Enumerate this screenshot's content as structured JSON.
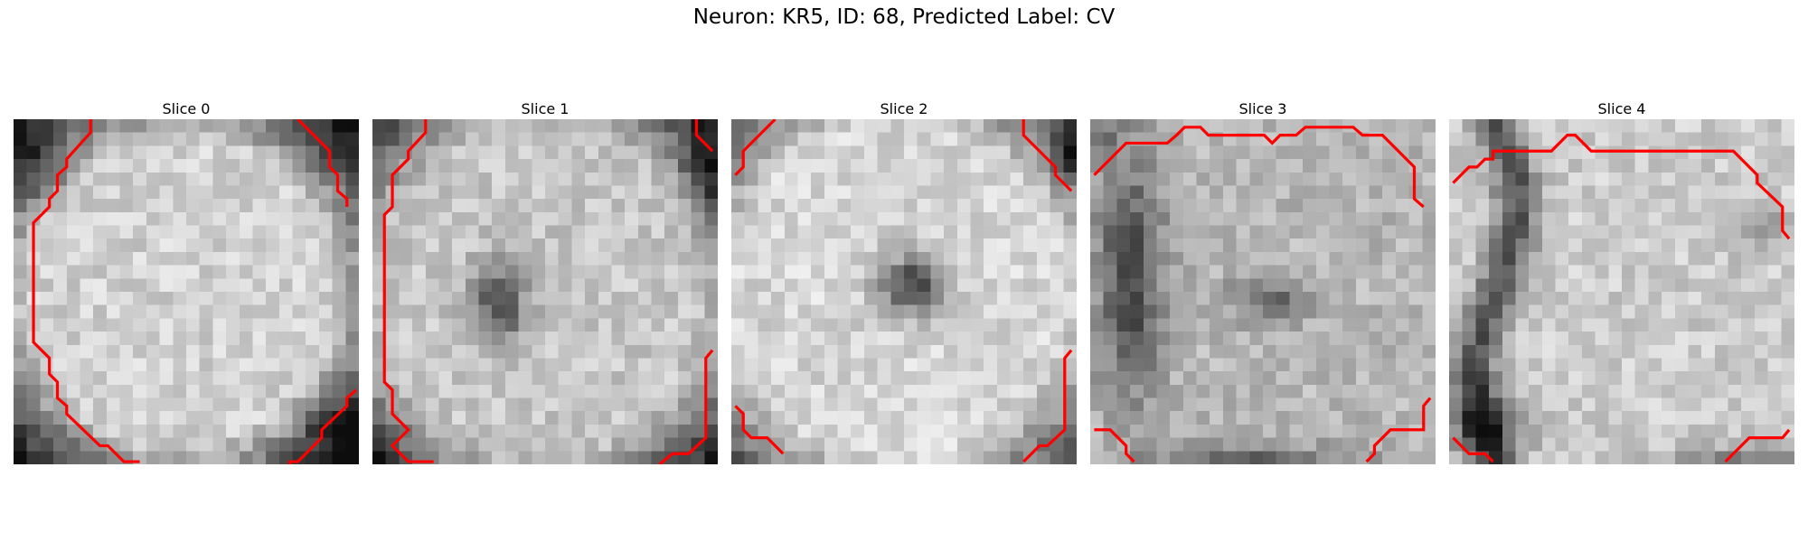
{
  "figure": {
    "title": "Neuron: KR5, ID: 68, Predicted Label: CV",
    "contour_color": "#ff0000"
  },
  "slices": [
    {
      "title": "Slice 0",
      "grid_size": 26
    },
    {
      "title": "Slice 1",
      "grid_size": 26
    },
    {
      "title": "Slice 2",
      "grid_size": 26
    },
    {
      "title": "Slice 3",
      "grid_size": 26
    },
    {
      "title": "Slice 4",
      "grid_size": 26
    }
  ]
}
